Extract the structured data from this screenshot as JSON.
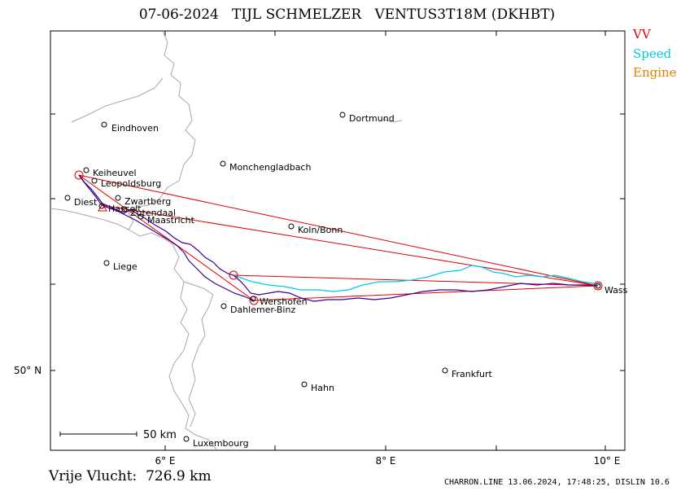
{
  "header": {
    "date": "07-06-2024",
    "pilot": "TIJL SCHMELZER",
    "glider": "VENTUS3T18M (DKHBT)"
  },
  "legend": [
    {
      "label": "VV",
      "color": "#e00000"
    },
    {
      "label": "Speed",
      "color": "#00c8e8"
    },
    {
      "label": "Engine",
      "color": "#e08000"
    }
  ],
  "map": {
    "x_ticks": [
      {
        "label": "6° E",
        "lon": 6
      },
      {
        "label": "8° E",
        "lon": 8
      },
      {
        "label": "10° E",
        "lon": 10
      }
    ],
    "y_ticks": [
      {
        "label": "50° N",
        "lat": 50
      }
    ],
    "scale_bar": {
      "label": "50 km"
    },
    "cities": [
      {
        "name": "Eindhoven"
      },
      {
        "name": "Dortmund"
      },
      {
        "name": "Keiheuvel"
      },
      {
        "name": "Leopoldsburg"
      },
      {
        "name": "Monchengladbach"
      },
      {
        "name": "Diest"
      },
      {
        "name": "Zwartberg"
      },
      {
        "name": "Hasselt"
      },
      {
        "name": "Zutendaal"
      },
      {
        "name": "Maastricht"
      },
      {
        "name": "Koln/Bonn"
      },
      {
        "name": "Liege"
      },
      {
        "name": "Wershofen"
      },
      {
        "name": "Dahlemer-Binz"
      },
      {
        "name": "Wass"
      },
      {
        "name": "Frankfurt"
      },
      {
        "name": "Hahn"
      },
      {
        "name": "Luxembourg"
      }
    ]
  },
  "footer": {
    "distance": "Vrije Vlucht:  726.9 km",
    "software": "CHARRON.LINE 13.06.2024, 17:48:25, DISLIN 10.6"
  }
}
